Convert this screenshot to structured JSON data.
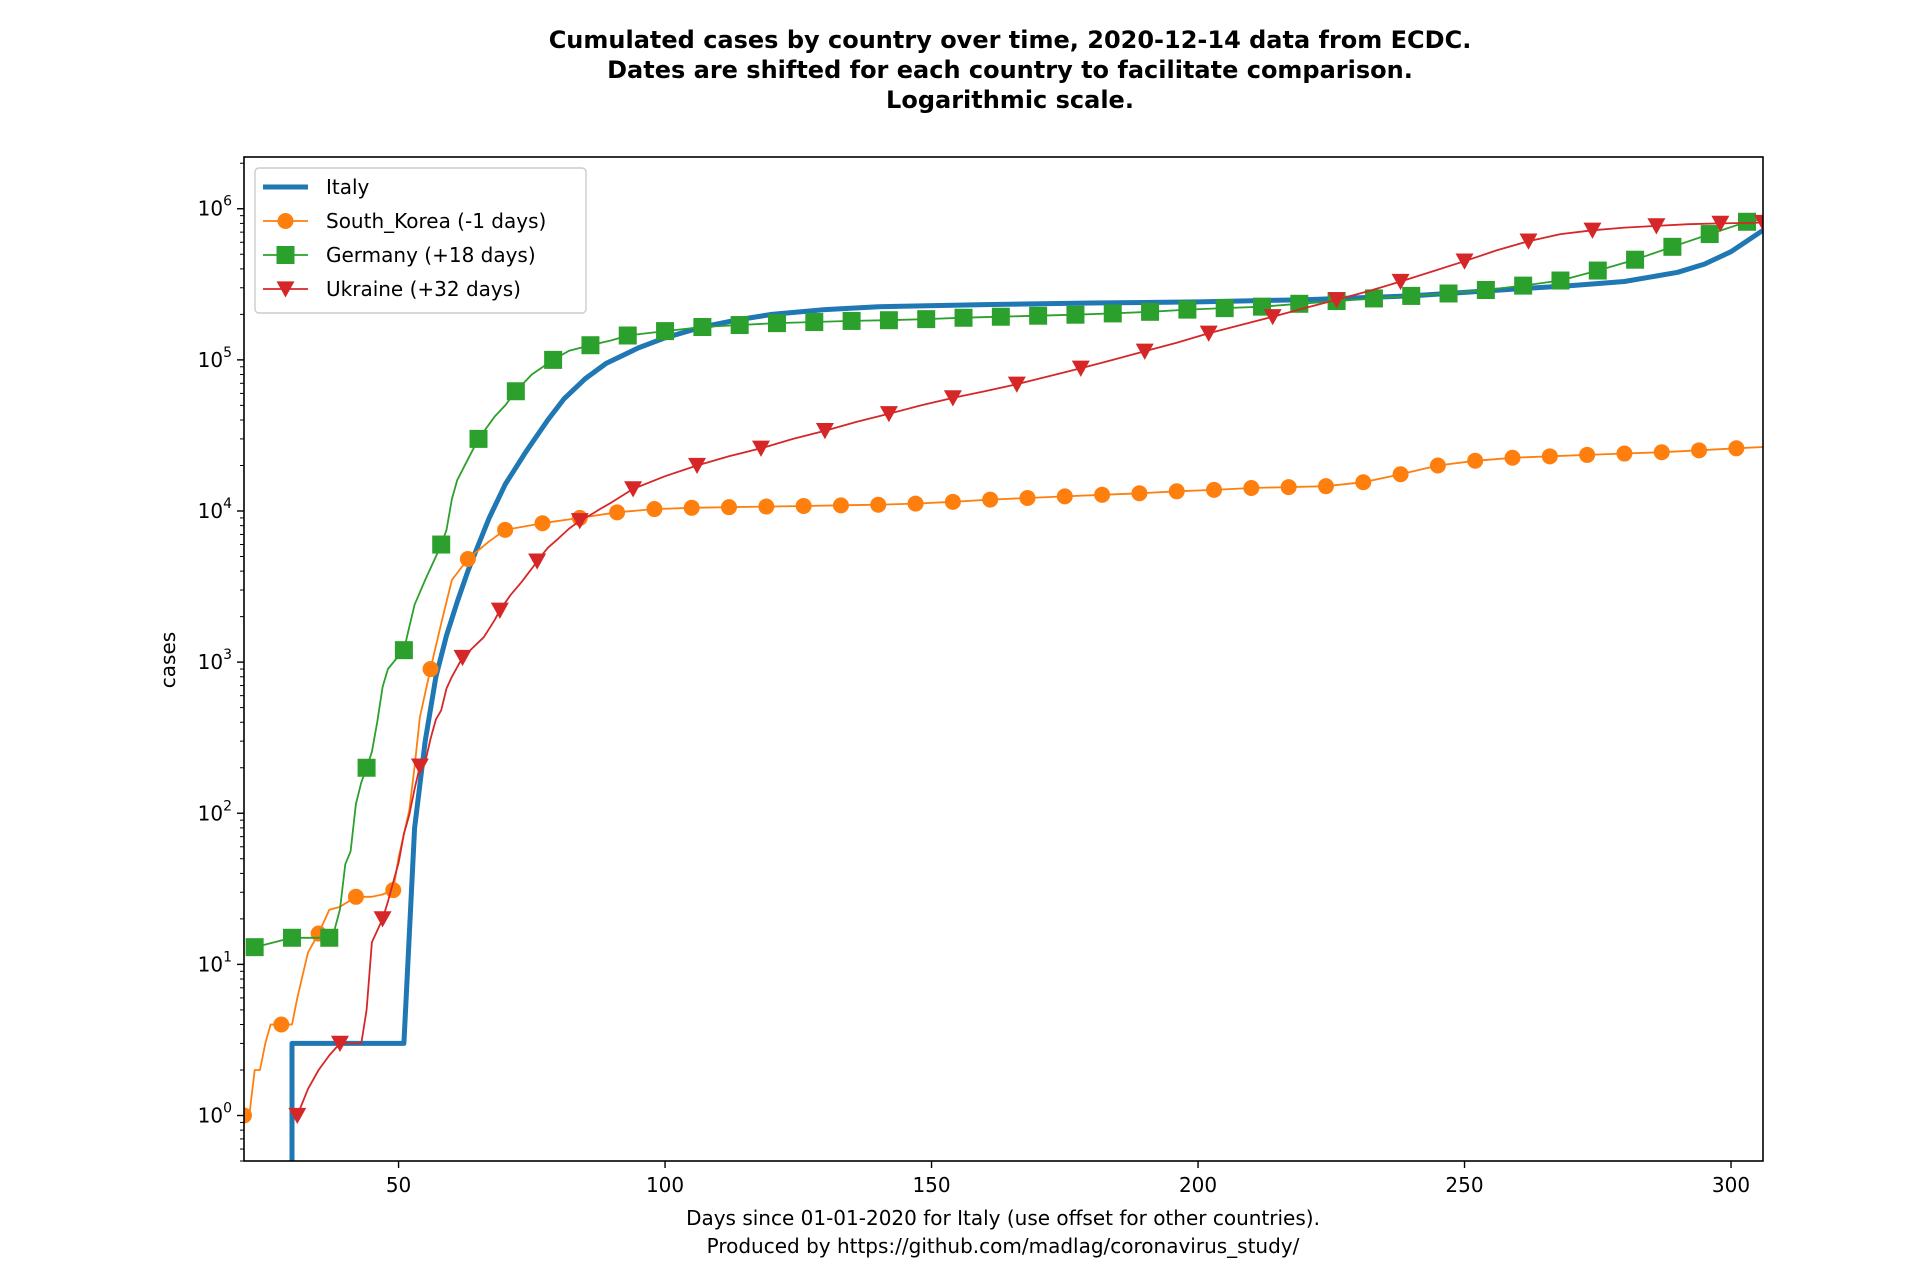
{
  "chart_data": {
    "type": "line",
    "title_lines": [
      "Cumulated cases by country over time, 2020-12-14 data from ECDC.",
      "Dates are shifted for each country to facilitate comparison.",
      "Logarithmic scale."
    ],
    "xlabel_lines": [
      "Days since 01-01-2020 for Italy (use offset for other countries).",
      "Produced by https://github.com/madlag/coronavirus_study/"
    ],
    "ylabel": "cases",
    "yscale": "log",
    "xlim": [
      21,
      306
    ],
    "ylim": [
      0.5,
      2200000
    ],
    "x_ticks": [
      50,
      100,
      150,
      200,
      250,
      300
    ],
    "y_ticks": [
      {
        "value": 1,
        "base": "10",
        "exp": "0"
      },
      {
        "value": 10,
        "base": "10",
        "exp": "1"
      },
      {
        "value": 100,
        "base": "10",
        "exp": "2"
      },
      {
        "value": 1000,
        "base": "10",
        "exp": "3"
      },
      {
        "value": 10000,
        "base": "10",
        "exp": "4"
      },
      {
        "value": 100000,
        "base": "10",
        "exp": "5"
      },
      {
        "value": 1000000,
        "base": "10",
        "exp": "6"
      }
    ],
    "grid": false,
    "legend_position": "top-left",
    "series": [
      {
        "name": "Italy",
        "color": "#1f77b4",
        "marker": "none",
        "points": [
          [
            30,
            0.5
          ],
          [
            30,
            3
          ],
          [
            51,
            3
          ],
          [
            51,
            3
          ],
          [
            53,
            80
          ],
          [
            55,
            300
          ],
          [
            57,
            800
          ],
          [
            59,
            1500
          ],
          [
            61,
            2500
          ],
          [
            63,
            4000
          ],
          [
            65,
            6000
          ],
          [
            67,
            9000
          ],
          [
            70,
            15000
          ],
          [
            74,
            25000
          ],
          [
            78,
            40000
          ],
          [
            81,
            55000
          ],
          [
            85,
            75000
          ],
          [
            89,
            95000
          ],
          [
            95,
            120000
          ],
          [
            100,
            140000
          ],
          [
            107,
            165000
          ],
          [
            114,
            185000
          ],
          [
            120,
            200000
          ],
          [
            130,
            215000
          ],
          [
            140,
            225000
          ],
          [
            160,
            232000
          ],
          [
            180,
            238000
          ],
          [
            200,
            242000
          ],
          [
            220,
            250000
          ],
          [
            240,
            265000
          ],
          [
            260,
            295000
          ],
          [
            270,
            310000
          ],
          [
            280,
            330000
          ],
          [
            290,
            380000
          ],
          [
            295,
            430000
          ],
          [
            300,
            520000
          ],
          [
            306,
            720000
          ]
        ]
      },
      {
        "name": "South_Korea (-1 days)",
        "color": "#ff7f0e",
        "marker": "circle",
        "points": [
          [
            21,
            1
          ],
          [
            22,
            1
          ],
          [
            23,
            2
          ],
          [
            24,
            2
          ],
          [
            25,
            3
          ],
          [
            26,
            4
          ],
          [
            28,
            4
          ],
          [
            30,
            4
          ],
          [
            31,
            6
          ],
          [
            33,
            12
          ],
          [
            35,
            16
          ],
          [
            37,
            23
          ],
          [
            39,
            24
          ],
          [
            42,
            28
          ],
          [
            45,
            28
          ],
          [
            47,
            29
          ],
          [
            49,
            31
          ],
          [
            50,
            51
          ],
          [
            52,
            104
          ],
          [
            53,
            204
          ],
          [
            54,
            433
          ],
          [
            56,
            900
          ],
          [
            58,
            1800
          ],
          [
            60,
            3500
          ],
          [
            63,
            4812
          ],
          [
            67,
            6300
          ],
          [
            70,
            7500
          ],
          [
            77,
            8300
          ],
          [
            84,
            9000
          ],
          [
            91,
            9800
          ],
          [
            98,
            10300
          ],
          [
            105,
            10500
          ],
          [
            112,
            10600
          ],
          [
            119,
            10700
          ],
          [
            126,
            10800
          ],
          [
            133,
            10900
          ],
          [
            140,
            11000
          ],
          [
            147,
            11200
          ],
          [
            154,
            11500
          ],
          [
            161,
            11900
          ],
          [
            168,
            12200
          ],
          [
            175,
            12500
          ],
          [
            182,
            12800
          ],
          [
            189,
            13100
          ],
          [
            196,
            13500
          ],
          [
            203,
            13800
          ],
          [
            210,
            14200
          ],
          [
            217,
            14400
          ],
          [
            224,
            14600
          ],
          [
            231,
            15500
          ],
          [
            238,
            17500
          ],
          [
            245,
            20000
          ],
          [
            252,
            21500
          ],
          [
            259,
            22500
          ],
          [
            266,
            23000
          ],
          [
            273,
            23500
          ],
          [
            280,
            24000
          ],
          [
            287,
            24500
          ],
          [
            294,
            25200
          ],
          [
            301,
            26000
          ],
          [
            306,
            26500
          ]
        ]
      },
      {
        "name": "Germany (+18 days)",
        "color": "#2ca02c",
        "marker": "square",
        "points": [
          [
            23,
            13
          ],
          [
            30,
            15
          ],
          [
            37,
            15
          ],
          [
            38,
            17
          ],
          [
            39,
            23
          ],
          [
            40,
            46
          ],
          [
            41,
            56
          ],
          [
            42,
            115
          ],
          [
            43,
            160
          ],
          [
            44,
            200
          ],
          [
            45,
            255
          ],
          [
            46,
            400
          ],
          [
            47,
            685
          ],
          [
            48,
            900
          ],
          [
            50,
            1100
          ],
          [
            51,
            1200
          ],
          [
            52,
            1700
          ],
          [
            53,
            2400
          ],
          [
            55,
            3500
          ],
          [
            57,
            5000
          ],
          [
            58,
            6000
          ],
          [
            59,
            7500
          ],
          [
            60,
            12000
          ],
          [
            61,
            16000
          ],
          [
            63,
            22000
          ],
          [
            65,
            30000
          ],
          [
            68,
            42000
          ],
          [
            70,
            50000
          ],
          [
            72,
            62000
          ],
          [
            75,
            80000
          ],
          [
            79,
            100000
          ],
          [
            82,
            115000
          ],
          [
            86,
            125000
          ],
          [
            90,
            135000
          ],
          [
            93,
            145000
          ],
          [
            100,
            155000
          ],
          [
            107,
            165000
          ],
          [
            114,
            170000
          ],
          [
            121,
            175000
          ],
          [
            128,
            178000
          ],
          [
            135,
            181000
          ],
          [
            142,
            183000
          ],
          [
            149,
            186000
          ],
          [
            156,
            190000
          ],
          [
            163,
            193000
          ],
          [
            170,
            196000
          ],
          [
            177,
            199000
          ],
          [
            184,
            203000
          ],
          [
            191,
            208000
          ],
          [
            198,
            215000
          ],
          [
            205,
            220000
          ],
          [
            212,
            225000
          ],
          [
            219,
            235000
          ],
          [
            226,
            245000
          ],
          [
            233,
            255000
          ],
          [
            240,
            265000
          ],
          [
            247,
            275000
          ],
          [
            254,
            290000
          ],
          [
            261,
            310000
          ],
          [
            268,
            335000
          ],
          [
            275,
            390000
          ],
          [
            282,
            460000
          ],
          [
            289,
            560000
          ],
          [
            296,
            680000
          ],
          [
            303,
            820000
          ],
          [
            306,
            850000
          ]
        ]
      },
      {
        "name": "Ukraine (+32 days)",
        "color": "#d62728",
        "marker": "triangle-down",
        "points": [
          [
            31,
            1
          ],
          [
            33,
            1.5
          ],
          [
            35,
            2
          ],
          [
            37,
            2.5
          ],
          [
            39,
            3
          ],
          [
            41,
            3
          ],
          [
            43,
            3
          ],
          [
            44,
            5
          ],
          [
            45,
            14
          ],
          [
            47,
            20
          ],
          [
            48,
            26
          ],
          [
            49,
            35
          ],
          [
            50,
            47
          ],
          [
            51,
            73
          ],
          [
            52,
            97
          ],
          [
            53,
            145
          ],
          [
            54,
            205
          ],
          [
            55,
            218
          ],
          [
            56,
            310
          ],
          [
            57,
            418
          ],
          [
            58,
            480
          ],
          [
            59,
            669
          ],
          [
            60,
            800
          ],
          [
            62,
            1072
          ],
          [
            64,
            1251
          ],
          [
            66,
            1462
          ],
          [
            68,
            1892
          ],
          [
            69,
            2203
          ],
          [
            71,
            2777
          ],
          [
            73,
            3372
          ],
          [
            75,
            4161
          ],
          [
            76,
            4662
          ],
          [
            78,
            5710
          ],
          [
            80,
            6592
          ],
          [
            82,
            7647
          ],
          [
            84,
            8617
          ],
          [
            86,
            9410
          ],
          [
            88,
            10406
          ],
          [
            90,
            11411
          ],
          [
            94,
            14000
          ],
          [
            100,
            17000
          ],
          [
            106,
            20000
          ],
          [
            112,
            23000
          ],
          [
            118,
            26000
          ],
          [
            124,
            30000
          ],
          [
            130,
            34000
          ],
          [
            136,
            39000
          ],
          [
            142,
            44000
          ],
          [
            148,
            50000
          ],
          [
            154,
            56000
          ],
          [
            160,
            62000
          ],
          [
            166,
            69000
          ],
          [
            172,
            78000
          ],
          [
            178,
            88000
          ],
          [
            184,
            100000
          ],
          [
            190,
            114000
          ],
          [
            196,
            130000
          ],
          [
            202,
            150000
          ],
          [
            208,
            170000
          ],
          [
            214,
            193000
          ],
          [
            220,
            220000
          ],
          [
            226,
            250000
          ],
          [
            232,
            285000
          ],
          [
            238,
            330000
          ],
          [
            244,
            385000
          ],
          [
            250,
            450000
          ],
          [
            256,
            530000
          ],
          [
            262,
            610000
          ],
          [
            268,
            680000
          ],
          [
            274,
            720000
          ],
          [
            280,
            750000
          ],
          [
            286,
            770000
          ],
          [
            292,
            790000
          ],
          [
            298,
            800000
          ],
          [
            306,
            810000
          ]
        ]
      }
    ]
  }
}
